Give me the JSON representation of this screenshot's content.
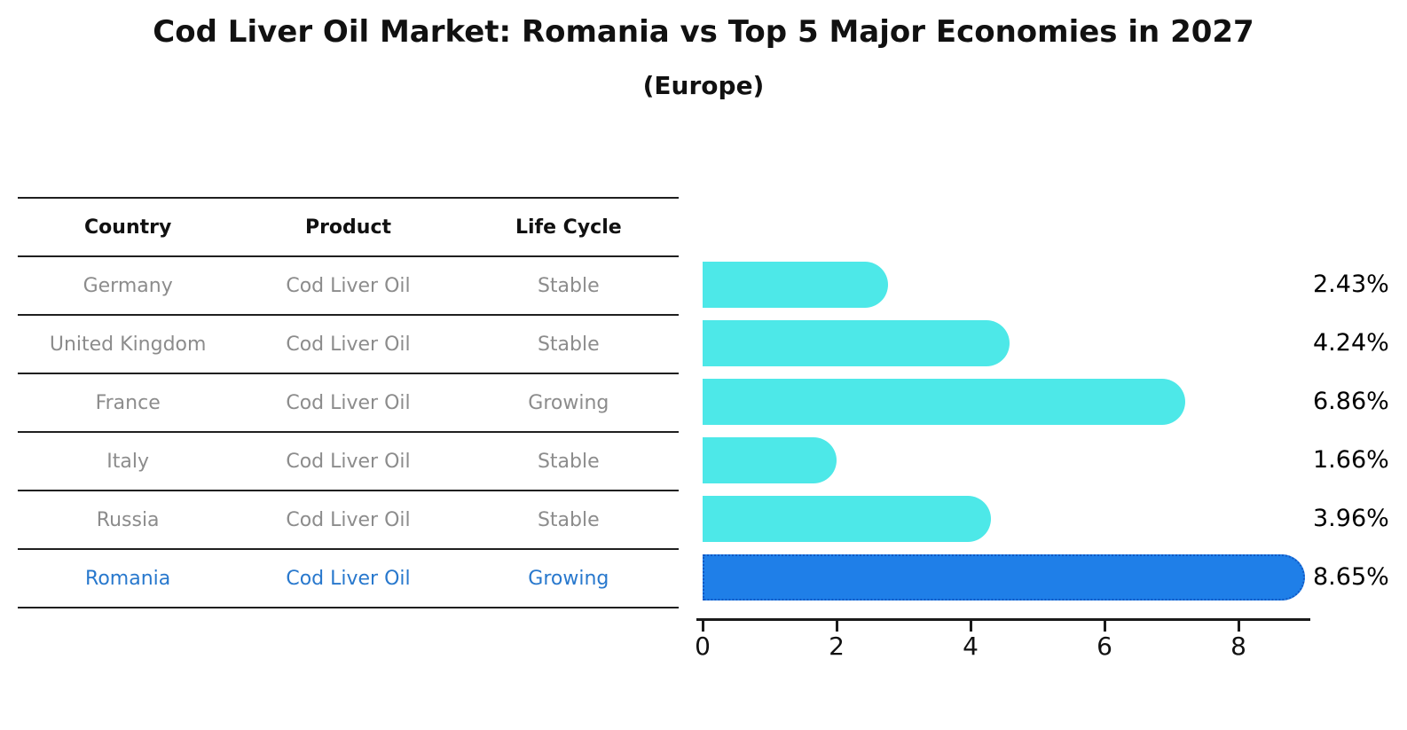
{
  "title": "Cod Liver Oil Market: Romania vs Top 5 Major Economies in 2027",
  "subtitle": "(Europe)",
  "table": {
    "columns": [
      "Country",
      "Product",
      "Life Cycle"
    ],
    "rows": [
      {
        "country": "Germany",
        "product": "Cod Liver Oil",
        "life_cycle": "Stable",
        "value": 2.43,
        "value_label": "2.43%",
        "highlight": false
      },
      {
        "country": "United Kingdom",
        "product": "Cod Liver Oil",
        "life_cycle": "Stable",
        "value": 4.24,
        "value_label": "4.24%",
        "highlight": false
      },
      {
        "country": "France",
        "product": "Cod Liver Oil",
        "life_cycle": "Growing",
        "value": 6.86,
        "value_label": "6.86%",
        "highlight": false
      },
      {
        "country": "Italy",
        "product": "Cod Liver Oil",
        "life_cycle": "Stable",
        "value": 1.66,
        "value_label": "1.66%",
        "highlight": false
      },
      {
        "country": "Russia",
        "product": "Cod Liver Oil",
        "life_cycle": "Stable",
        "value": 3.96,
        "value_label": "3.96%",
        "highlight": false
      },
      {
        "country": "Romania",
        "product": "Cod Liver Oil",
        "life_cycle": "Growing",
        "value": 8.65,
        "value_label": "8.65%",
        "highlight": true
      }
    ]
  },
  "chart_data": {
    "type": "bar",
    "orientation": "horizontal",
    "title": "Cod Liver Oil Market: Romania vs Top 5 Major Economies in 2027",
    "subtitle": "(Europe)",
    "categories": [
      "Germany",
      "United Kingdom",
      "France",
      "Italy",
      "Russia",
      "Romania"
    ],
    "values": [
      2.43,
      4.24,
      6.86,
      1.66,
      3.96,
      8.65
    ],
    "value_labels": [
      "2.43%",
      "4.24%",
      "6.86%",
      "1.66%",
      "3.96%",
      "8.65%"
    ],
    "xlabel": "",
    "ylabel": "",
    "x_ticks": [
      0,
      2,
      4,
      6,
      8
    ],
    "x_tick_labels": [
      "0",
      "2",
      "4",
      "6",
      "8"
    ],
    "xlim": [
      0,
      9
    ],
    "grid": false,
    "legend": false,
    "highlight_category": "Romania",
    "colors": {
      "bar": "#4DE8E8",
      "highlight_bar": "#1F7FE8",
      "highlight_border": "#1259C4",
      "highlight_text": "#2878CD",
      "cell_text": "#8C8C8C",
      "header_text": "#111111",
      "axis": "#1A1A1A"
    }
  }
}
